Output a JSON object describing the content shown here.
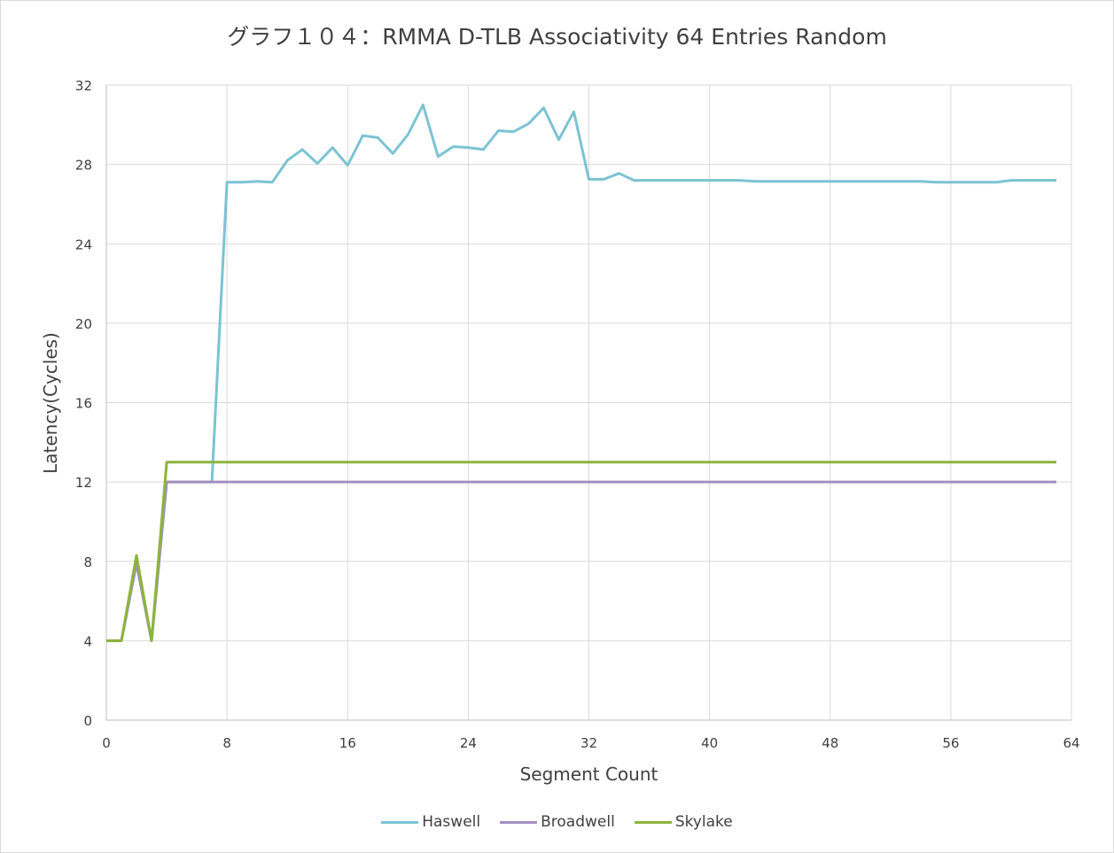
{
  "chart_data": {
    "type": "line",
    "title": "グラフ１０４：RMMA D-TLB Associativity 64 Entries Random",
    "xlabel": "Segment Count",
    "ylabel": "Latency(Cycles)",
    "xlim": [
      0,
      64
    ],
    "ylim": [
      0,
      32
    ],
    "xticks": [
      0,
      8,
      16,
      24,
      32,
      40,
      48,
      56,
      64
    ],
    "yticks": [
      0,
      4,
      8,
      12,
      16,
      20,
      24,
      28,
      32
    ],
    "grid": true,
    "legend_position": "bottom",
    "x": [
      0,
      1,
      2,
      3,
      4,
      5,
      6,
      7,
      8,
      9,
      10,
      11,
      12,
      13,
      14,
      15,
      16,
      17,
      18,
      19,
      20,
      21,
      22,
      23,
      24,
      25,
      26,
      27,
      28,
      29,
      30,
      31,
      32,
      33,
      34,
      35,
      36,
      37,
      38,
      39,
      40,
      41,
      42,
      43,
      44,
      45,
      46,
      47,
      48,
      49,
      50,
      51,
      52,
      53,
      54,
      55,
      56,
      57,
      58,
      59,
      60,
      61,
      62,
      63
    ],
    "series": [
      {
        "name": "Haswell",
        "color": "#7cc3d2",
        "values": [
          4,
          4,
          7.9,
          4,
          12,
          12,
          12,
          12,
          27.1,
          27.1,
          27.15,
          27.1,
          28.2,
          28.75,
          28.05,
          28.85,
          27.95,
          29.45,
          29.35,
          28.55,
          29.5,
          31,
          28.4,
          28.9,
          28.85,
          28.75,
          29.7,
          29.65,
          30.05,
          30.85,
          29.25,
          30.65,
          27.25,
          27.25,
          27.55,
          27.2,
          27.2,
          27.2,
          27.2,
          27.2,
          27.2,
          27.2,
          27.2,
          27.15,
          27.15,
          27.15,
          27.15,
          27.15,
          27.15,
          27.15,
          27.15,
          27.15,
          27.15,
          27.15,
          27.15,
          27.1,
          27.1,
          27.1,
          27.1,
          27.1,
          27.2,
          27.2,
          27.2,
          27.2
        ]
      },
      {
        "name": "Broadwell",
        "color": "#a58fc0",
        "values": [
          4,
          4,
          7.9,
          4,
          12,
          12,
          12,
          12,
          12,
          12,
          12,
          12,
          12,
          12,
          12,
          12,
          12,
          12,
          12,
          12,
          12,
          12,
          12,
          12,
          12,
          12,
          12,
          12,
          12,
          12,
          12,
          12,
          12,
          12,
          12,
          12,
          12,
          12,
          12,
          12,
          12,
          12,
          12,
          12,
          12,
          12,
          12,
          12,
          12,
          12,
          12,
          12,
          12,
          12,
          12,
          12,
          12,
          12,
          12,
          12,
          12,
          12,
          12,
          12
        ]
      },
      {
        "name": "Skylake",
        "color": "#8db43c",
        "values": [
          4,
          4,
          8.3,
          4,
          13,
          13,
          13,
          13,
          13,
          13,
          13,
          13,
          13,
          13,
          13,
          13,
          13,
          13,
          13,
          13,
          13,
          13,
          13,
          13,
          13,
          13,
          13,
          13,
          13,
          13,
          13,
          13,
          13,
          13,
          13,
          13,
          13,
          13,
          13,
          13,
          13,
          13,
          13,
          13,
          13,
          13,
          13,
          13,
          13,
          13,
          13,
          13,
          13,
          13,
          13,
          13,
          13,
          13,
          13,
          13,
          13,
          13,
          13,
          13
        ]
      }
    ]
  }
}
